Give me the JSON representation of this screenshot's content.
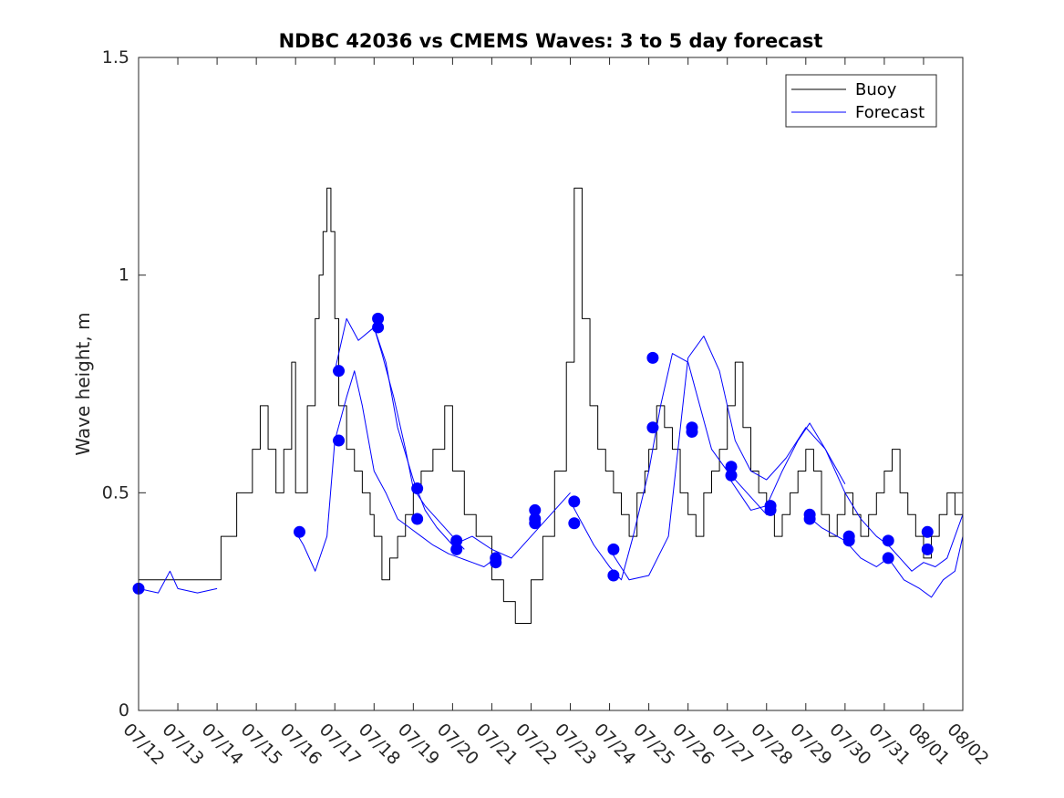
{
  "chart_data": {
    "type": "line",
    "title": "NDBC 42036 vs CMEMS Waves: 3 to 5 day forecast",
    "xlabel": "",
    "ylabel": "Wave height, m",
    "xlim": [
      "07/12",
      "08/02"
    ],
    "ylim": [
      0,
      1.5
    ],
    "yticks": [
      0,
      0.5,
      1,
      1.5
    ],
    "ytick_labels": [
      "0",
      "0.5",
      "1",
      "1.5"
    ],
    "xtick_labels": [
      "07/12",
      "07/13",
      "07/14",
      "07/15",
      "07/16",
      "07/17",
      "07/18",
      "07/19",
      "07/20",
      "07/21",
      "07/22",
      "07/23",
      "07/24",
      "07/25",
      "07/26",
      "07/27",
      "07/28",
      "07/29",
      "07/30",
      "07/31",
      "08/01",
      "08/02"
    ],
    "grid": false,
    "legend": {
      "position": "top-right",
      "entries": [
        "Buoy",
        "Forecast"
      ]
    },
    "colors": {
      "buoy": "#000000",
      "forecast": "#0000ff",
      "markers": "#0000ff"
    },
    "series": [
      {
        "name": "Buoy",
        "style": "step",
        "x": [
          0,
          1,
          1.5,
          2,
          2.1,
          2.5,
          2.9,
          3.1,
          3.3,
          3.5,
          3.7,
          3.9,
          4.0,
          4.3,
          4.5,
          4.6,
          4.7,
          4.8,
          4.9,
          5.0,
          5.1,
          5.3,
          5.5,
          5.7,
          5.9,
          6.0,
          6.2,
          6.4,
          6.6,
          6.8,
          7.0,
          7.2,
          7.5,
          7.8,
          8.0,
          8.3,
          8.6,
          9.0,
          9.3,
          9.6,
          10.0,
          10.3,
          10.6,
          10.9,
          11.1,
          11.3,
          11.5,
          11.7,
          11.9,
          12.1,
          12.3,
          12.5,
          12.7,
          12.9,
          13.0,
          13.2,
          13.4,
          13.6,
          13.8,
          14.0,
          14.2,
          14.4,
          14.6,
          14.8,
          15.0,
          15.2,
          15.4,
          15.6,
          15.8,
          16.0,
          16.2,
          16.4,
          16.6,
          16.8,
          17.0,
          17.2,
          17.4,
          17.6,
          17.8,
          18.0,
          18.2,
          18.4,
          18.6,
          18.8,
          19.0,
          19.2,
          19.4,
          19.6,
          19.8,
          20.0,
          20.2,
          20.4,
          20.6,
          20.8,
          21.0
        ],
        "y": [
          0.3,
          0.3,
          0.3,
          0.3,
          0.4,
          0.5,
          0.6,
          0.7,
          0.6,
          0.5,
          0.6,
          0.8,
          0.5,
          0.7,
          0.9,
          1.0,
          1.1,
          1.2,
          1.1,
          0.9,
          0.7,
          0.6,
          0.55,
          0.5,
          0.45,
          0.4,
          0.3,
          0.35,
          0.4,
          0.45,
          0.5,
          0.55,
          0.6,
          0.7,
          0.55,
          0.45,
          0.4,
          0.3,
          0.25,
          0.2,
          0.3,
          0.4,
          0.55,
          0.8,
          1.2,
          0.9,
          0.7,
          0.6,
          0.55,
          0.5,
          0.45,
          0.4,
          0.5,
          0.55,
          0.6,
          0.7,
          0.65,
          0.6,
          0.5,
          0.45,
          0.4,
          0.5,
          0.55,
          0.6,
          0.7,
          0.8,
          0.65,
          0.55,
          0.5,
          0.45,
          0.4,
          0.45,
          0.5,
          0.55,
          0.6,
          0.55,
          0.45,
          0.4,
          0.45,
          0.5,
          0.45,
          0.4,
          0.45,
          0.5,
          0.55,
          0.6,
          0.5,
          0.45,
          0.4,
          0.35,
          0.4,
          0.45,
          0.5,
          0.45,
          0.4
        ]
      },
      {
        "name": "Forecast",
        "x": [
          0,
          0.5,
          0.8,
          1.0,
          1.5,
          2.0
        ],
        "y": [
          0.28,
          0.27,
          0.32,
          0.28,
          0.27,
          0.28
        ]
      },
      {
        "name": "Forecast",
        "x": [
          4.0,
          4.2,
          4.5,
          4.8,
          5.0,
          5.3,
          5.5,
          5.7,
          6.0,
          6.3,
          6.6,
          6.9,
          7.2,
          7.5,
          7.9,
          8.2,
          8.5,
          8.8,
          9.1
        ],
        "y": [
          0.41,
          0.38,
          0.32,
          0.4,
          0.62,
          0.72,
          0.78,
          0.7,
          0.55,
          0.5,
          0.44,
          0.42,
          0.4,
          0.38,
          0.36,
          0.35,
          0.34,
          0.33,
          0.35
        ]
      },
      {
        "name": "Forecast",
        "x": [
          5.0,
          5.3,
          5.6,
          6.0,
          6.2,
          6.5,
          6.8,
          7.0,
          7.3,
          7.6,
          8.0,
          8.3
        ],
        "y": [
          0.78,
          0.9,
          0.85,
          0.88,
          0.82,
          0.72,
          0.6,
          0.51,
          0.47,
          0.44,
          0.4,
          0.37
        ]
      },
      {
        "name": "Forecast",
        "x": [
          6.0,
          6.3,
          6.6,
          7.0,
          7.3,
          7.6,
          8.0,
          8.5,
          9.0,
          9.5,
          10.0,
          10.5,
          11.0
        ],
        "y": [
          0.88,
          0.8,
          0.65,
          0.53,
          0.46,
          0.42,
          0.38,
          0.4,
          0.37,
          0.35,
          0.4,
          0.45,
          0.5
        ]
      },
      {
        "name": "Forecast",
        "x": [
          11.0,
          11.3,
          11.6,
          12.0,
          12.3,
          12.6,
          13.0,
          13.3,
          13.6,
          14.0,
          14.3,
          14.6,
          15.0,
          15.5,
          16.0
        ],
        "y": [
          0.48,
          0.43,
          0.38,
          0.33,
          0.3,
          0.4,
          0.55,
          0.7,
          0.82,
          0.8,
          0.7,
          0.6,
          0.55,
          0.5,
          0.45
        ]
      },
      {
        "name": "Forecast",
        "x": [
          12.0,
          12.5,
          13.0,
          13.5,
          14.0,
          14.4,
          14.8,
          15.2,
          15.6,
          16.0,
          16.5,
          17.0,
          17.5,
          18.0
        ],
        "y": [
          0.37,
          0.3,
          0.31,
          0.4,
          0.81,
          0.86,
          0.78,
          0.62,
          0.55,
          0.53,
          0.58,
          0.65,
          0.6,
          0.52
        ]
      },
      {
        "name": "Forecast",
        "x": [
          15.0,
          15.3,
          15.6,
          16.0,
          16.4,
          16.8,
          17.1,
          17.5,
          18.0,
          18.4,
          18.8,
          19.1,
          19.4,
          19.7,
          20.0,
          20.3,
          20.6,
          21.0
        ],
        "y": [
          0.54,
          0.5,
          0.46,
          0.47,
          0.55,
          0.62,
          0.66,
          0.6,
          0.5,
          0.44,
          0.4,
          0.38,
          0.35,
          0.32,
          0.34,
          0.33,
          0.35,
          0.45
        ]
      },
      {
        "name": "Forecast",
        "x": [
          17.0,
          17.4,
          17.8,
          18.0,
          18.4,
          18.8,
          19.1,
          19.5,
          19.9,
          20.2,
          20.5,
          20.8,
          21.0
        ],
        "y": [
          0.45,
          0.42,
          0.4,
          0.39,
          0.35,
          0.33,
          0.35,
          0.3,
          0.28,
          0.26,
          0.3,
          0.32,
          0.4
        ]
      }
    ],
    "markers": {
      "x": [
        0.0,
        4.1,
        5.1,
        5.1,
        6.1,
        6.1,
        7.1,
        7.1,
        8.1,
        8.1,
        9.1,
        9.1,
        10.1,
        10.1,
        10.1,
        11.1,
        11.1,
        12.1,
        12.1,
        13.1,
        13.1,
        14.1,
        14.1,
        15.1,
        15.1,
        16.1,
        16.1,
        17.1,
        17.1,
        18.1,
        18.1,
        19.1,
        19.1,
        20.1,
        20.1
      ],
      "y": [
        0.28,
        0.41,
        0.78,
        0.62,
        0.9,
        0.88,
        0.51,
        0.44,
        0.39,
        0.37,
        0.35,
        0.34,
        0.46,
        0.44,
        0.43,
        0.48,
        0.43,
        0.37,
        0.31,
        0.81,
        0.65,
        0.65,
        0.64,
        0.56,
        0.54,
        0.47,
        0.46,
        0.45,
        0.44,
        0.4,
        0.39,
        0.39,
        0.35,
        0.41,
        0.37
      ]
    }
  }
}
